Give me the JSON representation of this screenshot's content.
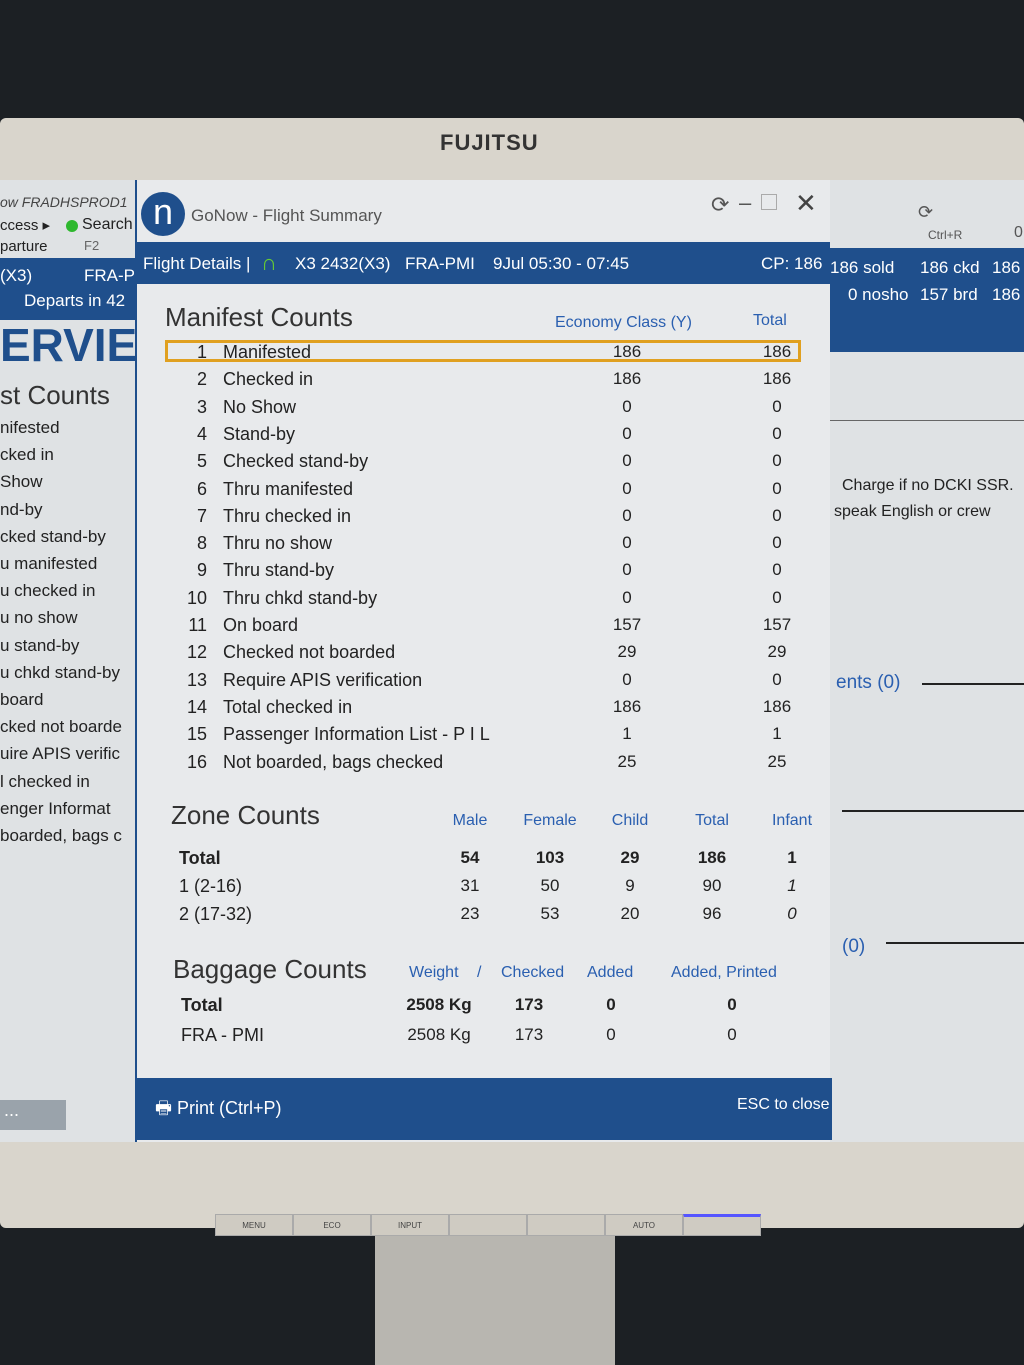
{
  "monitor": {
    "brand": "FUJITSU",
    "buttons": [
      "MENU",
      "ECO",
      "INPUT",
      "",
      "",
      "AUTO",
      ""
    ]
  },
  "background_left": {
    "top_lines": [
      "ow  FRADHSPROD1",
      "ccess ▸",
      "Search",
      "parture",
      "F2"
    ],
    "flight": "(X3)",
    "route": "FRA-P",
    "departs": "Departs in 42",
    "big": "ERVIE",
    "section": "st Counts",
    "items": [
      "nifested",
      "cked in",
      "Show",
      "nd-by",
      "cked stand-by",
      "u manifested",
      "u checked in",
      "u no show",
      "u stand-by",
      "u chkd stand-by",
      "board",
      "cked not boarde",
      "uire APIS verific",
      "l checked in",
      "enger Informat",
      "boarded, bags c"
    ],
    "more": "..."
  },
  "background_right": {
    "refresh_shortcut": "Ctrl+R",
    "zero": "0",
    "stats_row1": [
      "186 sold",
      "186 ckd",
      "186"
    ],
    "stats_row2": [
      "0 nosho",
      "157 brd",
      "186"
    ],
    "note1": "Charge if no DCKI SSR.",
    "note2": "speak English or crew",
    "link1": "ents (0)",
    "link2": "(0)"
  },
  "dialog": {
    "title": "GoNow - Flight Summary",
    "flight_bar": {
      "label": "Flight Details |",
      "flight": "X3 2432(X3)",
      "route": "FRA-PMI",
      "date_time": "9Jul 05:30 - 07:45",
      "cp": "CP: 186"
    },
    "manifest": {
      "title": "Manifest Counts",
      "columns": [
        "Economy Class (Y)",
        "Total"
      ],
      "highlighted_row": 1,
      "rows": [
        {
          "n": "1",
          "label": "Manifested",
          "y": "186",
          "total": "186"
        },
        {
          "n": "2",
          "label": "Checked in",
          "y": "186",
          "total": "186"
        },
        {
          "n": "3",
          "label": "No Show",
          "y": "0",
          "total": "0"
        },
        {
          "n": "4",
          "label": "Stand-by",
          "y": "0",
          "total": "0"
        },
        {
          "n": "5",
          "label": "Checked stand-by",
          "y": "0",
          "total": "0"
        },
        {
          "n": "6",
          "label": "Thru manifested",
          "y": "0",
          "total": "0"
        },
        {
          "n": "7",
          "label": "Thru checked in",
          "y": "0",
          "total": "0"
        },
        {
          "n": "8",
          "label": "Thru no show",
          "y": "0",
          "total": "0"
        },
        {
          "n": "9",
          "label": "Thru stand-by",
          "y": "0",
          "total": "0"
        },
        {
          "n": "10",
          "label": "Thru chkd stand-by",
          "y": "0",
          "total": "0"
        },
        {
          "n": "11",
          "label": "On board",
          "y": "157",
          "total": "157"
        },
        {
          "n": "12",
          "label": "Checked not boarded",
          "y": "29",
          "total": "29"
        },
        {
          "n": "13",
          "label": "Require APIS verification",
          "y": "0",
          "total": "0"
        },
        {
          "n": "14",
          "label": "Total checked in",
          "y": "186",
          "total": "186"
        },
        {
          "n": "15",
          "label": "Passenger Information List - P I L",
          "y": "1",
          "total": "1"
        },
        {
          "n": "16",
          "label": "Not boarded, bags checked",
          "y": "25",
          "total": "25"
        }
      ]
    },
    "zone": {
      "title": "Zone Counts",
      "columns": [
        "Male",
        "Female",
        "Child",
        "Total",
        "Infant"
      ],
      "rows": [
        {
          "label": "Total",
          "values": [
            "54",
            "103",
            "29",
            "186",
            "1"
          ],
          "bold": true
        },
        {
          "label": "1 (2-16)",
          "values": [
            "31",
            "50",
            "9",
            "90",
            "1"
          ]
        },
        {
          "label": "2 (17-32)",
          "values": [
            "23",
            "53",
            "20",
            "96",
            "0"
          ]
        }
      ]
    },
    "baggage": {
      "title": "Baggage Counts",
      "columns": [
        "Weight",
        "/",
        "Checked",
        "Added",
        "Added, Printed"
      ],
      "rows": [
        {
          "label": "Total",
          "values": [
            "2508 Kg",
            "173",
            "0",
            "0"
          ],
          "bold": true
        },
        {
          "label": "FRA - PMI",
          "values": [
            "2508 Kg",
            "173",
            "0",
            "0"
          ]
        }
      ]
    },
    "footer": {
      "print": "Print (Ctrl+P)",
      "close": "ESC to close"
    }
  },
  "colors": {
    "accent": "#1f4f8c",
    "highlight": "#e0a020",
    "header_text": "#2a5fb0"
  }
}
